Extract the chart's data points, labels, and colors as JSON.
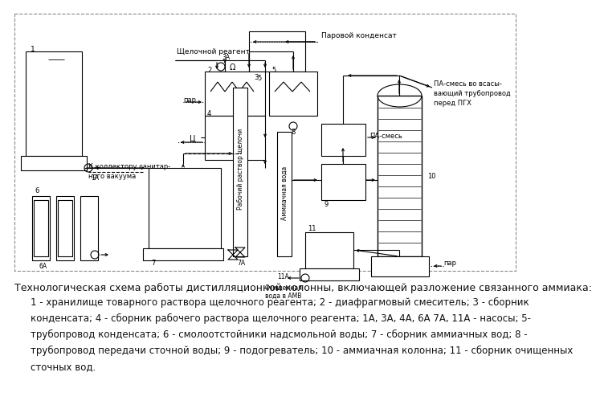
{
  "title": "Технологическая схема работы дистилляционной колонны, включающей разложение связанного аммиака:",
  "caption_lines": [
    "1 - хранилище товарного раствора щелочного реагента; 2 - диафрагмовый смеситель; 3 - сборник",
    "конденсата; 4 - сборник рабочего раствора щелочного реагента; 1А, 3А, 4А, 6А 7А, 11А - насосы; 5-",
    "трубопровод конденсата; 6 - смолоотстойники надсмольной воды; 7 - сборник аммиачных вод; 8 -",
    "трубопровод передачи сточной воды; 9 - подогреватель; 10 - аммиачная колонна; 11 - сборник очищенных",
    "сточных вод."
  ],
  "bg_color": "#ffffff",
  "text_color": "#111111",
  "title_fontsize": 9.0,
  "caption_fontsize": 8.5
}
